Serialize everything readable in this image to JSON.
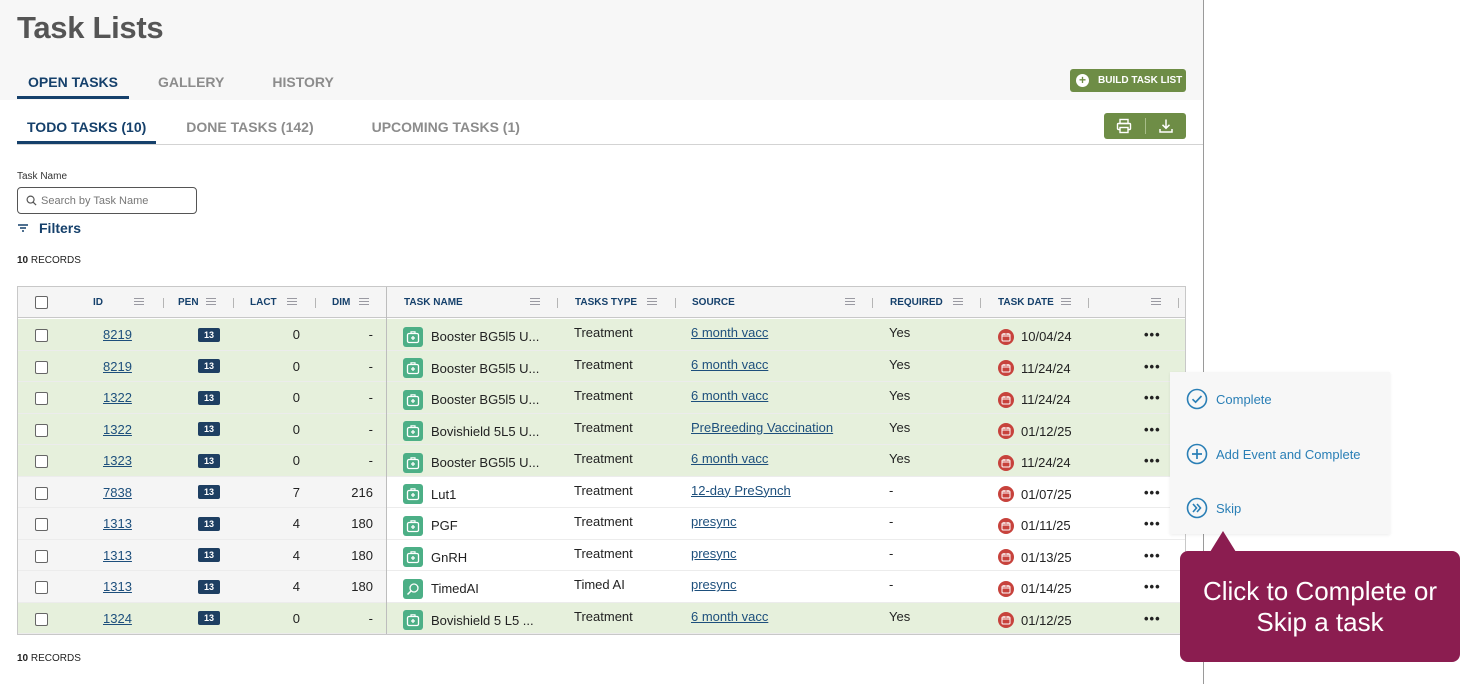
{
  "page": {
    "title": "Task Lists"
  },
  "main_tabs": [
    {
      "label": "OPEN TASKS",
      "active": true
    },
    {
      "label": "GALLERY",
      "active": false
    },
    {
      "label": "HISTORY",
      "active": false
    }
  ],
  "build_button": {
    "label": "BUILD TASK LIST"
  },
  "sub_tabs": [
    {
      "label": "TODO TASKS (10)",
      "active": true
    },
    {
      "label": "DONE TASKS (142)",
      "active": false
    },
    {
      "label": "UPCOMING TASKS (1)",
      "active": false
    }
  ],
  "search": {
    "label": "Task Name",
    "placeholder": "Search by Task Name",
    "value": ""
  },
  "filters": {
    "label": "Filters"
  },
  "records": {
    "count": "10",
    "suffix": "RECORDS"
  },
  "table": {
    "columns": {
      "id": "ID",
      "pen": "PEN",
      "lact": "LACT",
      "dim": "DIM",
      "task_name": "TASK NAME",
      "tasks_type": "TASKS TYPE",
      "source": "SOURCE",
      "required": "REQUIRED",
      "task_date": "TASK DATE"
    },
    "rows": [
      {
        "id": "8219",
        "pen": "13",
        "lact": "0",
        "dim": "-",
        "task_name": "Booster BG5l5 U...",
        "icon": "medical-kit-icon",
        "tasks_type": "Treatment",
        "source": "6 month vacc",
        "required": "Yes",
        "task_date": "10/04/24",
        "highlight": true
      },
      {
        "id": "8219",
        "pen": "13",
        "lact": "0",
        "dim": "-",
        "task_name": "Booster BG5l5 U...",
        "icon": "medical-kit-icon",
        "tasks_type": "Treatment",
        "source": "6 month vacc",
        "required": "Yes",
        "task_date": "11/24/24",
        "highlight": true
      },
      {
        "id": "1322",
        "pen": "13",
        "lact": "0",
        "dim": "-",
        "task_name": "Booster BG5l5 U...",
        "icon": "medical-kit-icon",
        "tasks_type": "Treatment",
        "source": "6 month vacc",
        "required": "Yes",
        "task_date": "11/24/24",
        "highlight": true
      },
      {
        "id": "1322",
        "pen": "13",
        "lact": "0",
        "dim": "-",
        "task_name": "Bovishield 5L5 U...",
        "icon": "medical-kit-icon",
        "tasks_type": "Treatment",
        "source": "PreBreeding Vaccination",
        "required": "Yes",
        "task_date": "01/12/25",
        "highlight": true
      },
      {
        "id": "1323",
        "pen": "13",
        "lact": "0",
        "dim": "-",
        "task_name": "Booster BG5l5 U...",
        "icon": "medical-kit-icon",
        "tasks_type": "Treatment",
        "source": "6 month vacc",
        "required": "Yes",
        "task_date": "11/24/24",
        "highlight": true
      },
      {
        "id": "7838",
        "pen": "13",
        "lact": "7",
        "dim": "216",
        "task_name": "Lut1",
        "icon": "medical-kit-icon",
        "tasks_type": "Treatment",
        "source": "12-day PreSynch",
        "required": "-",
        "task_date": "01/07/25",
        "highlight": false
      },
      {
        "id": "1313",
        "pen": "13",
        "lact": "4",
        "dim": "180",
        "task_name": "PGF",
        "icon": "medical-kit-icon",
        "tasks_type": "Treatment",
        "source": "presync",
        "required": "-",
        "task_date": "01/11/25",
        "highlight": false
      },
      {
        "id": "1313",
        "pen": "13",
        "lact": "4",
        "dim": "180",
        "task_name": "GnRH",
        "icon": "medical-kit-icon",
        "tasks_type": "Treatment",
        "source": "presync",
        "required": "-",
        "task_date": "01/13/25",
        "highlight": false
      },
      {
        "id": "1313",
        "pen": "13",
        "lact": "4",
        "dim": "180",
        "task_name": "TimedAI",
        "icon": "insemination-icon",
        "tasks_type": "Timed AI",
        "source": "presync",
        "required": "-",
        "task_date": "01/14/25",
        "highlight": false
      },
      {
        "id": "1324",
        "pen": "13",
        "lact": "0",
        "dim": "-",
        "task_name": "Bovishield 5 L5 ...",
        "icon": "medical-kit-icon",
        "tasks_type": "Treatment",
        "source": "6 month vacc",
        "required": "Yes",
        "task_date": "01/12/25",
        "highlight": true
      }
    ]
  },
  "row_actions": {
    "dots": "•••",
    "menu": [
      {
        "label": "Complete",
        "icon": "check-circle-icon"
      },
      {
        "label": "Add Event and Complete",
        "icon": "plus-circle-icon"
      },
      {
        "label": "Skip",
        "icon": "skip-forward-icon"
      }
    ]
  },
  "callout": {
    "line1": "Click to Complete or",
    "line2": "Skip a task"
  },
  "colors": {
    "accent_navy": "#15406b",
    "button_green": "#6e8d46",
    "row_highlight": "#e6f0dc",
    "task_icon_green": "#4caf86",
    "calendar_red": "#c7423c",
    "link_blue": "#2a7fb6",
    "callout_maroon": "#8b1d50"
  }
}
